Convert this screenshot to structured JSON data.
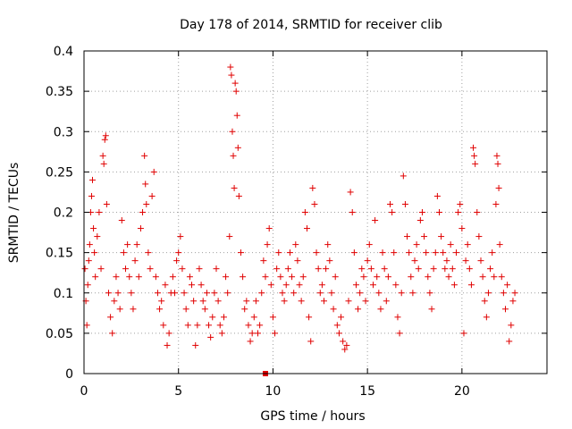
{
  "chart_data": {
    "type": "scatter",
    "title": "Day 178 of 2014, SRMTID for receiver clib",
    "xlabel": "GPS time / hours",
    "ylabel": "SRMTID / TECUs",
    "xlim": [
      0,
      24.5
    ],
    "ylim": [
      0,
      0.4
    ],
    "x_ticks": [
      0,
      5,
      10,
      15,
      20
    ],
    "x_tick_labels": [
      "0",
      "5",
      "10",
      "15",
      "20"
    ],
    "y_ticks": [
      0,
      0.05,
      0.1,
      0.15,
      0.2,
      0.25,
      0.3,
      0.35,
      0.4
    ],
    "y_tick_labels": [
      "0",
      "0.05",
      "0.1",
      "0.15",
      "0.2",
      "0.25",
      "0.3",
      "0.35",
      "0.4"
    ],
    "grid": true,
    "marker": "+",
    "color": "#e00000",
    "series": [
      {
        "name": "SRMTID",
        "points": [
          [
            0.05,
            0.13
          ],
          [
            0.1,
            0.09
          ],
          [
            0.15,
            0.06
          ],
          [
            0.2,
            0.11
          ],
          [
            0.25,
            0.14
          ],
          [
            0.3,
            0.16
          ],
          [
            0.35,
            0.2
          ],
          [
            0.4,
            0.22
          ],
          [
            0.45,
            0.24
          ],
          [
            0.5,
            0.18
          ],
          [
            0.55,
            0.15
          ],
          [
            0.6,
            0.12
          ],
          [
            0.7,
            0.17
          ],
          [
            0.8,
            0.2
          ],
          [
            0.9,
            0.13
          ],
          [
            1.0,
            0.27
          ],
          [
            1.05,
            0.26
          ],
          [
            1.1,
            0.29
          ],
          [
            1.15,
            0.295
          ],
          [
            1.2,
            0.21
          ],
          [
            1.3,
            0.1
          ],
          [
            1.4,
            0.07
          ],
          [
            1.5,
            0.05
          ],
          [
            1.6,
            0.09
          ],
          [
            1.7,
            0.12
          ],
          [
            1.8,
            0.1
          ],
          [
            1.9,
            0.08
          ],
          [
            2.0,
            0.19
          ],
          [
            2.1,
            0.15
          ],
          [
            2.2,
            0.13
          ],
          [
            2.3,
            0.16
          ],
          [
            2.4,
            0.12
          ],
          [
            2.5,
            0.1
          ],
          [
            2.6,
            0.08
          ],
          [
            2.7,
            0.14
          ],
          [
            2.8,
            0.16
          ],
          [
            2.9,
            0.12
          ],
          [
            3.0,
            0.18
          ],
          [
            3.1,
            0.2
          ],
          [
            3.2,
            0.27
          ],
          [
            3.25,
            0.235
          ],
          [
            3.3,
            0.21
          ],
          [
            3.4,
            0.15
          ],
          [
            3.5,
            0.13
          ],
          [
            3.6,
            0.22
          ],
          [
            3.7,
            0.25
          ],
          [
            3.8,
            0.12
          ],
          [
            3.9,
            0.1
          ],
          [
            4.0,
            0.08
          ],
          [
            4.1,
            0.09
          ],
          [
            4.2,
            0.06
          ],
          [
            4.3,
            0.11
          ],
          [
            4.4,
            0.035
          ],
          [
            4.5,
            0.05
          ],
          [
            4.6,
            0.1
          ],
          [
            4.7,
            0.12
          ],
          [
            4.8,
            0.1
          ],
          [
            4.9,
            0.14
          ],
          [
            5.0,
            0.15
          ],
          [
            5.1,
            0.17
          ],
          [
            5.2,
            0.13
          ],
          [
            5.3,
            0.1
          ],
          [
            5.4,
            0.08
          ],
          [
            5.5,
            0.06
          ],
          [
            5.6,
            0.12
          ],
          [
            5.7,
            0.11
          ],
          [
            5.8,
            0.09
          ],
          [
            5.9,
            0.035
          ],
          [
            6.0,
            0.06
          ],
          [
            6.1,
            0.13
          ],
          [
            6.2,
            0.11
          ],
          [
            6.3,
            0.09
          ],
          [
            6.4,
            0.08
          ],
          [
            6.5,
            0.1
          ],
          [
            6.6,
            0.06
          ],
          [
            6.7,
            0.045
          ],
          [
            6.8,
            0.07
          ],
          [
            6.9,
            0.1
          ],
          [
            7.0,
            0.13
          ],
          [
            7.1,
            0.09
          ],
          [
            7.2,
            0.06
          ],
          [
            7.3,
            0.05
          ],
          [
            7.4,
            0.07
          ],
          [
            7.5,
            0.12
          ],
          [
            7.6,
            0.1
          ],
          [
            7.7,
            0.17
          ],
          [
            7.75,
            0.38
          ],
          [
            7.8,
            0.37
          ],
          [
            7.85,
            0.3
          ],
          [
            7.9,
            0.27
          ],
          [
            7.95,
            0.23
          ],
          [
            8.0,
            0.36
          ],
          [
            8.05,
            0.35
          ],
          [
            8.1,
            0.32
          ],
          [
            8.15,
            0.28
          ],
          [
            8.2,
            0.22
          ],
          [
            8.3,
            0.15
          ],
          [
            8.4,
            0.12
          ],
          [
            8.5,
            0.08
          ],
          [
            8.6,
            0.09
          ],
          [
            8.7,
            0.06
          ],
          [
            8.8,
            0.04
          ],
          [
            8.9,
            0.05
          ],
          [
            9.0,
            0.07
          ],
          [
            9.1,
            0.09
          ],
          [
            9.2,
            0.05
          ],
          [
            9.3,
            0.06
          ],
          [
            9.4,
            0.1
          ],
          [
            9.5,
            0.14
          ],
          [
            9.6,
            0.12
          ],
          [
            9.7,
            0.16
          ],
          [
            9.8,
            0.18
          ],
          [
            9.9,
            0.11
          ],
          [
            10.0,
            0.07
          ],
          [
            10.1,
            0.05
          ],
          [
            10.2,
            0.13
          ],
          [
            10.3,
            0.15
          ],
          [
            10.4,
            0.12
          ],
          [
            10.5,
            0.1
          ],
          [
            10.6,
            0.09
          ],
          [
            10.7,
            0.11
          ],
          [
            10.8,
            0.13
          ],
          [
            10.9,
            0.15
          ],
          [
            11.0,
            0.12
          ],
          [
            11.1,
            0.1
          ],
          [
            11.2,
            0.16
          ],
          [
            11.3,
            0.14
          ],
          [
            11.4,
            0.11
          ],
          [
            11.5,
            0.09
          ],
          [
            11.6,
            0.12
          ],
          [
            11.7,
            0.2
          ],
          [
            11.8,
            0.18
          ],
          [
            11.9,
            0.07
          ],
          [
            12.0,
            0.04
          ],
          [
            12.1,
            0.23
          ],
          [
            12.2,
            0.21
          ],
          [
            12.3,
            0.15
          ],
          [
            12.4,
            0.13
          ],
          [
            12.5,
            0.1
          ],
          [
            12.6,
            0.11
          ],
          [
            12.7,
            0.09
          ],
          [
            12.8,
            0.13
          ],
          [
            12.9,
            0.16
          ],
          [
            13.0,
            0.14
          ],
          [
            13.1,
            0.1
          ],
          [
            13.2,
            0.08
          ],
          [
            13.3,
            0.12
          ],
          [
            13.4,
            0.06
          ],
          [
            13.5,
            0.05
          ],
          [
            13.6,
            0.07
          ],
          [
            13.7,
            0.04
          ],
          [
            13.8,
            0.03
          ],
          [
            13.9,
            0.035
          ],
          [
            14.0,
            0.09
          ],
          [
            14.1,
            0.225
          ],
          [
            14.2,
            0.2
          ],
          [
            14.3,
            0.15
          ],
          [
            14.4,
            0.11
          ],
          [
            14.5,
            0.08
          ],
          [
            14.6,
            0.1
          ],
          [
            14.7,
            0.13
          ],
          [
            14.8,
            0.12
          ],
          [
            14.9,
            0.09
          ],
          [
            15.0,
            0.14
          ],
          [
            15.1,
            0.16
          ],
          [
            15.2,
            0.13
          ],
          [
            15.3,
            0.11
          ],
          [
            15.4,
            0.19
          ],
          [
            15.5,
            0.12
          ],
          [
            15.6,
            0.1
          ],
          [
            15.7,
            0.08
          ],
          [
            15.8,
            0.15
          ],
          [
            15.9,
            0.13
          ],
          [
            16.0,
            0.09
          ],
          [
            16.1,
            0.12
          ],
          [
            16.2,
            0.21
          ],
          [
            16.3,
            0.2
          ],
          [
            16.4,
            0.15
          ],
          [
            16.5,
            0.11
          ],
          [
            16.6,
            0.07
          ],
          [
            16.7,
            0.05
          ],
          [
            16.8,
            0.1
          ],
          [
            16.9,
            0.245
          ],
          [
            17.0,
            0.21
          ],
          [
            17.1,
            0.17
          ],
          [
            17.2,
            0.15
          ],
          [
            17.3,
            0.12
          ],
          [
            17.4,
            0.1
          ],
          [
            17.5,
            0.14
          ],
          [
            17.6,
            0.16
          ],
          [
            17.7,
            0.13
          ],
          [
            17.8,
            0.19
          ],
          [
            17.9,
            0.2
          ],
          [
            18.0,
            0.17
          ],
          [
            18.1,
            0.15
          ],
          [
            18.2,
            0.12
          ],
          [
            18.3,
            0.1
          ],
          [
            18.4,
            0.08
          ],
          [
            18.5,
            0.13
          ],
          [
            18.6,
            0.15
          ],
          [
            18.7,
            0.22
          ],
          [
            18.8,
            0.2
          ],
          [
            18.9,
            0.17
          ],
          [
            19.0,
            0.15
          ],
          [
            19.1,
            0.13
          ],
          [
            19.2,
            0.14
          ],
          [
            19.3,
            0.12
          ],
          [
            19.4,
            0.16
          ],
          [
            19.5,
            0.13
          ],
          [
            19.6,
            0.11
          ],
          [
            19.7,
            0.15
          ],
          [
            19.8,
            0.2
          ],
          [
            19.9,
            0.21
          ],
          [
            20.0,
            0.18
          ],
          [
            20.1,
            0.05
          ],
          [
            20.2,
            0.14
          ],
          [
            20.3,
            0.16
          ],
          [
            20.4,
            0.13
          ],
          [
            20.5,
            0.11
          ],
          [
            20.6,
            0.28
          ],
          [
            20.65,
            0.27
          ],
          [
            20.7,
            0.26
          ],
          [
            20.8,
            0.2
          ],
          [
            20.9,
            0.17
          ],
          [
            21.0,
            0.14
          ],
          [
            21.1,
            0.12
          ],
          [
            21.2,
            0.09
          ],
          [
            21.3,
            0.07
          ],
          [
            21.4,
            0.1
          ],
          [
            21.5,
            0.13
          ],
          [
            21.6,
            0.15
          ],
          [
            21.7,
            0.12
          ],
          [
            21.8,
            0.21
          ],
          [
            21.85,
            0.27
          ],
          [
            21.9,
            0.26
          ],
          [
            21.95,
            0.23
          ],
          [
            22.0,
            0.16
          ],
          [
            22.1,
            0.12
          ],
          [
            22.2,
            0.1
          ],
          [
            22.3,
            0.08
          ],
          [
            22.4,
            0.11
          ],
          [
            22.5,
            0.04
          ],
          [
            22.6,
            0.06
          ],
          [
            22.7,
            0.09
          ],
          [
            22.8,
            0.1
          ]
        ]
      },
      {
        "name": "filled marker",
        "points": [
          [
            9.6,
            0.0
          ]
        ]
      }
    ]
  }
}
